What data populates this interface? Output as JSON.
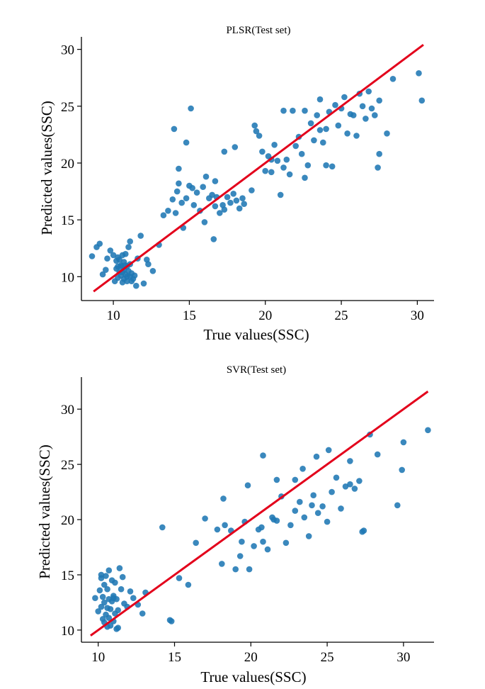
{
  "colors": {
    "points": "#1f77b4",
    "fit_line": "#e3001b",
    "axes": "#000000",
    "background": "#ffffff"
  },
  "chart_data": [
    {
      "type": "scatter",
      "title": "PLSR(Test set)",
      "xlabel": "True values(SSC)",
      "ylabel": "Predicted values(SSC)",
      "xlim": [
        7.9,
        31.1
      ],
      "ylim": [
        7.9,
        31.1
      ],
      "xticks": [
        10,
        15,
        20,
        25,
        30
      ],
      "yticks": [
        10,
        15,
        20,
        25,
        30
      ],
      "grid": false,
      "legend": "none",
      "fit_line": {
        "x": [
          8.7,
          30.4
        ],
        "y": [
          8.7,
          30.4
        ]
      },
      "series": [
        {
          "x": [
            8.6,
            8.9,
            9.1,
            9.3,
            9.5,
            9.6,
            9.8,
            10.0,
            10.1,
            10.2,
            10.2,
            10.3,
            10.3,
            10.4,
            10.4,
            10.5,
            10.5,
            10.6,
            10.6,
            10.6,
            10.7,
            10.7,
            10.7,
            10.8,
            10.8,
            10.9,
            10.9,
            11.0,
            11.0,
            11.1,
            11.1,
            11.2,
            11.3,
            11.4,
            11.5,
            11.6,
            11.8,
            12.0,
            12.2,
            12.3,
            12.6,
            10.8,
            11.1,
            10.3,
            10.5,
            10.9,
            11.2,
            13.0,
            13.3,
            13.6,
            13.9,
            14.1,
            14.2,
            14.3,
            14.5,
            14.6,
            14.8,
            15.0,
            15.2,
            15.3,
            15.5,
            15.7,
            15.9,
            16.1,
            16.3,
            16.5,
            16.7,
            16.8,
            17.0,
            17.2,
            17.3,
            17.5,
            17.7,
            17.9,
            18.1,
            18.3,
            18.6,
            14.0,
            14.3,
            14.8,
            15.1,
            16.0,
            16.7,
            16.6,
            17.3,
            18.5,
            18.0,
            19.1,
            19.4,
            19.6,
            19.8,
            20.0,
            20.2,
            20.4,
            20.6,
            20.8,
            21.0,
            21.2,
            21.4,
            21.6,
            21.8,
            22.0,
            22.2,
            22.4,
            22.6,
            22.8,
            23.0,
            23.2,
            23.4,
            23.6,
            23.8,
            24.0,
            24.2,
            24.4,
            24.6,
            24.8,
            25.0,
            25.2,
            25.4,
            25.6,
            25.8,
            26.0,
            26.2,
            26.4,
            26.6,
            26.8,
            27.0,
            27.2,
            27.5,
            28.0,
            28.4,
            30.1,
            30.3,
            27.4,
            27.5,
            24.0,
            23.6,
            22.6,
            21.2,
            20.4,
            19.3
          ],
          "y": [
            11.8,
            12.6,
            12.9,
            10.2,
            10.6,
            11.6,
            12.3,
            11.9,
            9.6,
            10.7,
            11.4,
            9.9,
            10.9,
            10.4,
            11.5,
            10.1,
            11.0,
            9.5,
            10.4,
            11.9,
            9.8,
            10.6,
            11.3,
            10.2,
            11.0,
            9.6,
            10.9,
            10.5,
            12.6,
            11.1,
            13.1,
            10.3,
            9.8,
            10.1,
            9.2,
            11.6,
            13.6,
            9.4,
            11.5,
            11.1,
            10.5,
            12.0,
            10.0,
            11.7,
            10.9,
            10.0,
            9.6,
            12.8,
            15.4,
            15.8,
            16.8,
            15.6,
            17.5,
            18.2,
            16.5,
            14.3,
            16.9,
            18.0,
            17.8,
            16.3,
            17.4,
            15.8,
            17.9,
            18.8,
            16.9,
            17.2,
            16.2,
            17.0,
            15.6,
            16.3,
            15.9,
            17.0,
            16.5,
            17.3,
            16.7,
            16.0,
            16.4,
            23.0,
            19.5,
            21.8,
            24.8,
            14.8,
            18.4,
            13.3,
            21.0,
            16.9,
            21.4,
            17.6,
            22.8,
            22.4,
            21.0,
            19.3,
            20.6,
            19.2,
            21.6,
            20.2,
            17.2,
            19.6,
            20.3,
            19.0,
            24.6,
            21.5,
            22.3,
            20.8,
            24.6,
            19.8,
            23.5,
            22.0,
            24.2,
            22.9,
            21.8,
            23.0,
            24.5,
            19.7,
            25.1,
            23.3,
            24.8,
            25.8,
            22.6,
            24.3,
            24.2,
            22.4,
            26.1,
            25.0,
            23.9,
            26.3,
            24.8,
            24.2,
            25.5,
            22.6,
            27.4,
            27.9,
            25.5,
            19.6,
            20.8,
            19.8,
            25.6,
            18.7,
            24.6,
            20.3,
            23.3
          ]
        }
      ]
    },
    {
      "type": "scatter",
      "title": "SVR(Test set)",
      "xlabel": "True values(SSC)",
      "ylabel": "Predicted values(SSC)",
      "xlim": [
        8.9,
        32.0
      ],
      "ylim": [
        8.9,
        32.9
      ],
      "xticks": [
        10,
        15,
        20,
        25,
        30
      ],
      "yticks": [
        10,
        15,
        20,
        25,
        30
      ],
      "grid": false,
      "legend": "none",
      "fit_line": {
        "x": [
          9.5,
          31.6
        ],
        "y": [
          9.5,
          31.6
        ]
      },
      "series": [
        {
          "x": [
            9.8,
            10.0,
            10.1,
            10.2,
            10.2,
            10.3,
            10.3,
            10.4,
            10.4,
            10.5,
            10.5,
            10.6,
            10.6,
            10.6,
            10.7,
            10.7,
            10.8,
            10.8,
            10.9,
            10.9,
            11.0,
            11.0,
            11.1,
            11.1,
            11.2,
            11.2,
            11.3,
            11.4,
            11.5,
            11.7,
            11.9,
            12.1,
            12.3,
            12.6,
            12.9,
            13.1,
            10.2,
            10.4,
            10.7,
            11.0,
            11.3,
            11.6,
            14.7,
            14.8,
            14.2,
            15.3,
            15.9,
            16.4,
            17.0,
            17.8,
            18.1,
            18.3,
            18.7,
            19.0,
            19.3,
            19.6,
            19.9,
            20.2,
            20.5,
            20.8,
            21.1,
            21.4,
            21.7,
            22.0,
            22.3,
            22.6,
            22.9,
            23.2,
            23.5,
            23.8,
            24.1,
            24.4,
            24.7,
            25.0,
            25.3,
            25.6,
            25.9,
            26.2,
            26.5,
            26.8,
            27.1,
            27.4,
            27.8,
            28.3,
            29.6,
            29.9,
            30.0,
            31.6,
            26.5,
            27.3,
            24.0,
            22.9,
            21.5,
            20.8,
            19.8,
            19.4,
            18.2,
            21.7,
            23.4,
            24.3,
            25.1,
            20.7
          ],
          "y": [
            12.9,
            11.7,
            13.6,
            12.1,
            14.7,
            11.0,
            13.0,
            10.7,
            12.5,
            11.4,
            14.9,
            10.3,
            12.0,
            13.7,
            11.1,
            12.8,
            10.4,
            11.9,
            12.6,
            14.5,
            10.8,
            13.1,
            11.5,
            14.3,
            10.1,
            12.8,
            11.8,
            15.6,
            13.7,
            12.4,
            12.1,
            13.5,
            12.9,
            12.3,
            11.5,
            13.4,
            15.0,
            14.1,
            15.4,
            12.9,
            10.2,
            14.8,
            10.9,
            10.8,
            19.3,
            14.7,
            14.1,
            17.9,
            20.1,
            19.1,
            16.0,
            19.5,
            19.0,
            15.5,
            16.7,
            19.8,
            15.5,
            17.6,
            19.1,
            18.0,
            17.3,
            20.2,
            19.9,
            22.1,
            17.9,
            19.5,
            20.8,
            21.6,
            20.2,
            18.5,
            22.2,
            20.6,
            21.2,
            19.8,
            22.5,
            23.8,
            21.0,
            23.0,
            23.2,
            22.8,
            23.5,
            19.0,
            27.7,
            25.9,
            21.3,
            24.5,
            27.0,
            28.1,
            25.3,
            18.9,
            21.3,
            23.6,
            20.0,
            25.8,
            23.1,
            18.0,
            21.9,
            23.6,
            24.6,
            25.7,
            26.3,
            19.3
          ]
        }
      ]
    }
  ]
}
